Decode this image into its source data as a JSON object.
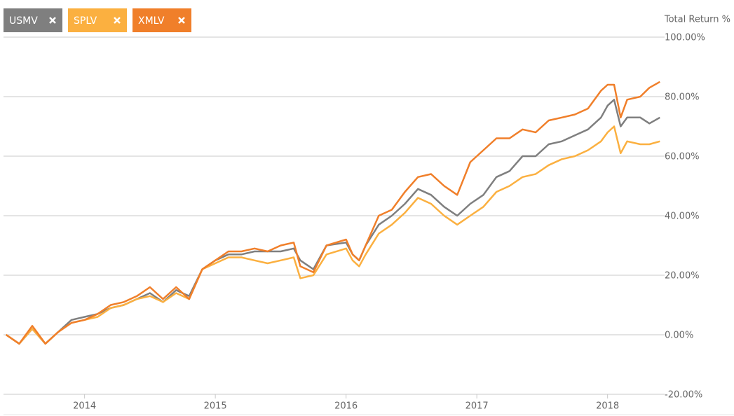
{
  "chart_data": {
    "type": "line",
    "y_axis_label": "Total Return %",
    "x": [
      2013.4,
      2013.5,
      2013.6,
      2013.7,
      2013.8,
      2013.9,
      2014.0,
      2014.1,
      2014.2,
      2014.3,
      2014.4,
      2014.5,
      2014.6,
      2014.7,
      2014.8,
      2014.9,
      2015.0,
      2015.1,
      2015.2,
      2015.3,
      2015.4,
      2015.5,
      2015.6,
      2015.65,
      2015.75,
      2015.85,
      2016.0,
      2016.05,
      2016.1,
      2016.15,
      2016.25,
      2016.35,
      2016.45,
      2016.55,
      2016.65,
      2016.75,
      2016.85,
      2016.95,
      2017.05,
      2017.15,
      2017.25,
      2017.35,
      2017.45,
      2017.55,
      2017.65,
      2017.75,
      2017.85,
      2017.95,
      2018.0,
      2018.05,
      2018.1,
      2018.15,
      2018.25,
      2018.32,
      2018.4
    ],
    "series": [
      {
        "name": "USMV",
        "color": "#7f7f7f",
        "values": [
          0,
          -3,
          2,
          -3,
          1,
          5,
          6,
          7,
          9,
          10,
          12,
          14,
          11,
          15,
          13,
          22,
          25,
          27,
          27,
          28,
          28,
          28,
          29,
          25,
          22,
          30,
          31,
          27,
          25,
          30,
          37,
          40,
          44,
          49,
          47,
          43,
          40,
          44,
          47,
          53,
          55,
          60,
          60,
          64,
          65,
          67,
          69,
          73,
          77,
          79,
          70,
          73,
          73,
          71,
          73
        ]
      },
      {
        "name": "SPLV",
        "color": "#fbb040",
        "values": [
          0,
          -3,
          2,
          -3,
          1,
          4,
          5,
          6,
          9,
          10,
          12,
          13,
          11,
          14,
          12,
          22,
          24,
          26,
          26,
          25,
          24,
          25,
          26,
          19,
          20,
          27,
          29,
          25,
          23,
          27,
          34,
          37,
          41,
          46,
          44,
          40,
          37,
          40,
          43,
          48,
          50,
          53,
          54,
          57,
          59,
          60,
          62,
          65,
          68,
          70,
          61,
          65,
          64,
          64,
          65
        ]
      },
      {
        "name": "XMLV",
        "color": "#f07f2a",
        "values": [
          0,
          -3,
          3,
          -3,
          1,
          4,
          5,
          7,
          10,
          11,
          13,
          16,
          12,
          16,
          12,
          22,
          25,
          28,
          28,
          29,
          28,
          30,
          31,
          23,
          21,
          30,
          32,
          27,
          25,
          30,
          40,
          42,
          48,
          53,
          54,
          50,
          47,
          58,
          62,
          66,
          66,
          69,
          68,
          72,
          73,
          74,
          76,
          82,
          84,
          84,
          73,
          79,
          80,
          83,
          85
        ]
      }
    ],
    "xlim": [
      2013.38,
      2018.42
    ],
    "xticks": [
      2014,
      2015,
      2016,
      2017,
      2018
    ],
    "ylim": [
      -20,
      100
    ],
    "yticks": [
      {
        "value": -20,
        "label": "-20.00%"
      },
      {
        "value": 0,
        "label": "0.00%"
      },
      {
        "value": 20,
        "label": "20.00%"
      },
      {
        "value": 40,
        "label": "40.00%"
      },
      {
        "value": 60,
        "label": "60.00%"
      },
      {
        "value": 80,
        "label": "80.00%"
      },
      {
        "value": 100,
        "label": "100.00%"
      }
    ],
    "grid": true
  }
}
